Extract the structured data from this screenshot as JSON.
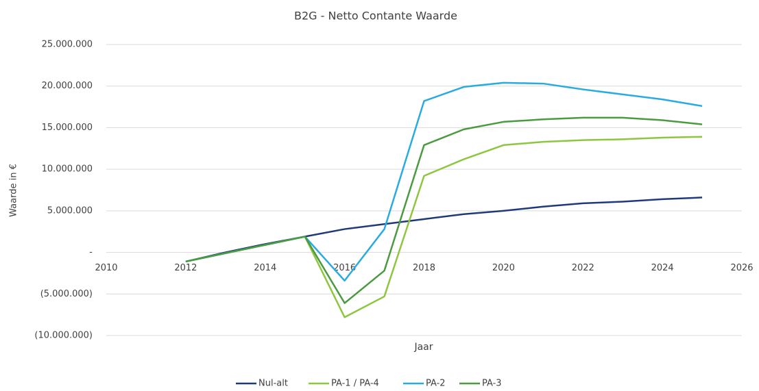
{
  "chart_data": {
    "type": "line",
    "title": "B2G - Netto Contante Waarde",
    "x_label": "Jaar",
    "y_label": "Waarde in €",
    "x": [
      2012,
      2013,
      2014,
      2015,
      2016,
      2017,
      2018,
      2019,
      2020,
      2021,
      2022,
      2023,
      2024,
      2025
    ],
    "series": [
      {
        "name": "Nul-alt",
        "color": "#1f3a7a",
        "values": [
          -1100000,
          0,
          1000000,
          1900000,
          2800000,
          3400000,
          4000000,
          4600000,
          5000000,
          5500000,
          5900000,
          6100000,
          6400000,
          6600000
        ]
      },
      {
        "name": "PA-1 / PA-4",
        "color": "#8dc63f",
        "values": [
          -1100000,
          -100000,
          900000,
          1900000,
          -7800000,
          -5300000,
          9200000,
          11200000,
          12900000,
          13300000,
          13500000,
          13600000,
          13800000,
          13900000
        ]
      },
      {
        "name": "PA-2",
        "color": "#29abe2",
        "values": [
          -1100000,
          -100000,
          900000,
          1900000,
          -3400000,
          2800000,
          18200000,
          19900000,
          20400000,
          20300000,
          19600000,
          19000000,
          18400000,
          17600000
        ]
      },
      {
        "name": "PA-3",
        "color": "#4a9a3f",
        "values": [
          -1100000,
          -100000,
          900000,
          1900000,
          -6100000,
          -2200000,
          12900000,
          14800000,
          15700000,
          16000000,
          16200000,
          16200000,
          15900000,
          15400000
        ]
      }
    ],
    "xlim": [
      2010,
      2026
    ],
    "xticks": [
      2010,
      2012,
      2014,
      2016,
      2018,
      2020,
      2022,
      2024,
      2026
    ],
    "ylim": [
      -10000000,
      25000000
    ],
    "yticks": [
      {
        "value": -10000000,
        "label": "(10.000.000)"
      },
      {
        "value": -5000000,
        "label": "(5.000.000)"
      },
      {
        "value": 0,
        "label": "-"
      },
      {
        "value": 5000000,
        "label": "5.000.000"
      },
      {
        "value": 10000000,
        "label": "10.000.000"
      },
      {
        "value": 15000000,
        "label": "15.000.000"
      },
      {
        "value": 20000000,
        "label": "20.000.000"
      },
      {
        "value": 25000000,
        "label": "25.000.000"
      }
    ],
    "grid": true,
    "legend": "bottom"
  }
}
